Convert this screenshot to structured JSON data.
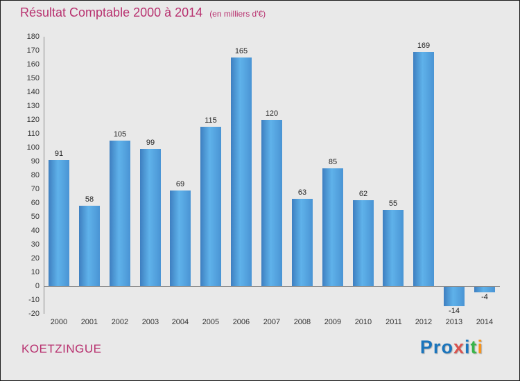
{
  "header": {
    "title": "Résultat Comptable 2000 à 2014",
    "subtitle": "(en milliers d'€)"
  },
  "footer": {
    "company": "KOETZINGUE",
    "logo_letters": [
      {
        "ch": "P",
        "color": "#1b75bc"
      },
      {
        "ch": "r",
        "color": "#1b75bc"
      },
      {
        "ch": "o",
        "color": "#1b75bc"
      },
      {
        "ch": "x",
        "color": "#d9534f"
      },
      {
        "ch": "i",
        "color": "#1b75bc"
      },
      {
        "ch": "t",
        "color": "#39b54a"
      },
      {
        "ch": "i",
        "color": "#f7941d"
      }
    ]
  },
  "chart_data": {
    "type": "bar",
    "title": "Résultat Comptable 2000 à 2014",
    "subtitle": "(en milliers d'€)",
    "xlabel": "",
    "ylabel": "",
    "categories": [
      "2000",
      "2001",
      "2002",
      "2003",
      "2004",
      "2005",
      "2006",
      "2007",
      "2008",
      "2009",
      "2010",
      "2011",
      "2012",
      "2013",
      "2014"
    ],
    "values": [
      91,
      58,
      105,
      99,
      69,
      115,
      165,
      120,
      63,
      85,
      62,
      55,
      169,
      -14,
      -4
    ],
    "ylim": [
      -20,
      180
    ],
    "ytick_step": 10,
    "grid": false,
    "legend": false,
    "bar_color_dark": "#3e7fc0",
    "bar_color_light": "#5fb2ea",
    "axis_color": "#8a8a8a",
    "tick_label_color": "#333333",
    "value_label_color": "#222222"
  }
}
